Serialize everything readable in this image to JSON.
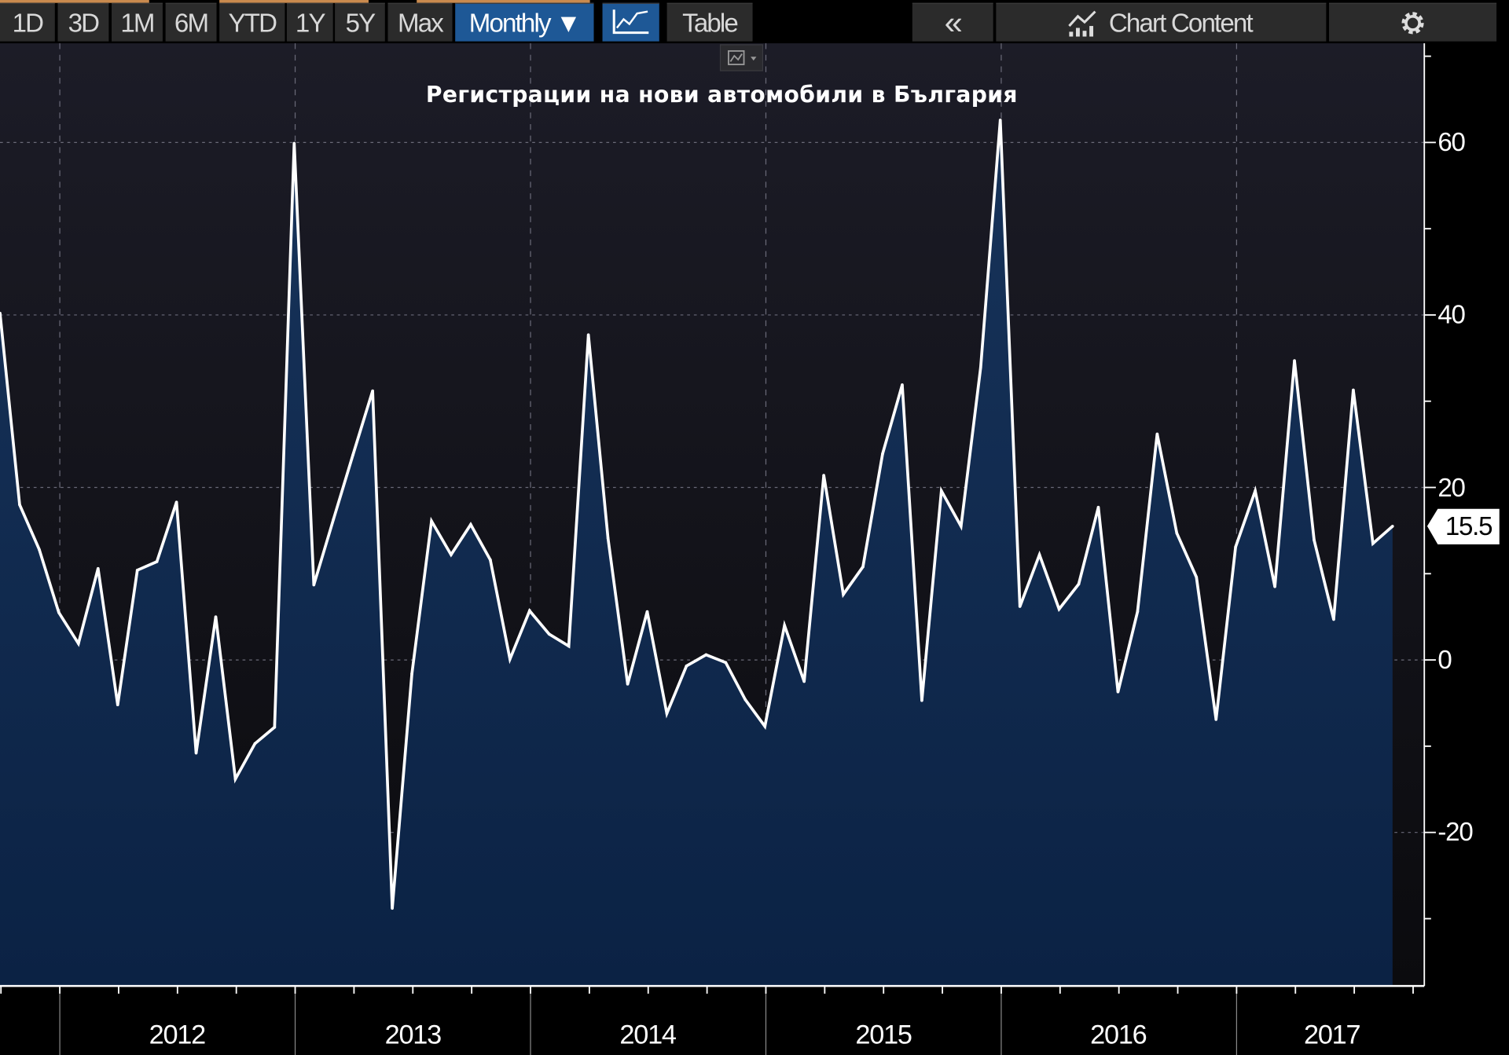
{
  "toolbar": {
    "ranges": [
      "1D",
      "3D",
      "1M",
      "6M",
      "YTD",
      "1Y",
      "5Y",
      "Max"
    ],
    "frequency": "Monthly ▼",
    "table": "Table",
    "collapse": "«",
    "chart_content": "Chart Content"
  },
  "colors": {
    "accent": "#1e5896",
    "line": "#ffffff",
    "fill": "#0f2b50",
    "background": "#1a1a22"
  },
  "chart_data": {
    "type": "area",
    "title": "Регистрации на нови автомобили в България",
    "xlabel": "",
    "ylabel": "",
    "x_start": "2011-10",
    "frequency": "monthly",
    "values": [
      40.2,
      18.0,
      12.8,
      5.5,
      1.9,
      10.6,
      -5.2,
      10.4,
      11.4,
      18.3,
      -10.8,
      5.0,
      -13.8,
      -9.7,
      -7.8,
      59.9,
      8.7,
      16.3,
      23.8,
      31.2,
      -28.8,
      -1.6,
      16.1,
      12.2,
      15.7,
      11.6,
      0.1,
      5.7,
      3.0,
      1.6,
      37.7,
      14.1,
      -2.8,
      5.6,
      -6.2,
      -0.7,
      0.6,
      -0.3,
      -4.6,
      -7.7,
      4.0,
      -2.5,
      21.4,
      7.6,
      10.8,
      23.9,
      31.9,
      -4.7,
      19.6,
      15.5,
      33.9,
      62.6,
      6.2,
      12.2,
      5.9,
      8.8,
      17.7,
      -3.7,
      5.6,
      26.2,
      14.7,
      9.6,
      -6.9,
      13.1,
      19.6,
      8.5,
      34.7,
      13.9,
      4.7,
      31.3,
      13.5,
      15.5
    ],
    "ylim": [
      -37.8,
      71.5
    ],
    "yticks": [
      "60",
      "40",
      "20",
      "0",
      "-20"
    ],
    "ytick_values": [
      60,
      40,
      20,
      0,
      -20
    ],
    "xticks": [
      "2012",
      "2013",
      "2014",
      "2015",
      "2016",
      "2017"
    ],
    "last_value_label": "15.5",
    "grid": true
  }
}
